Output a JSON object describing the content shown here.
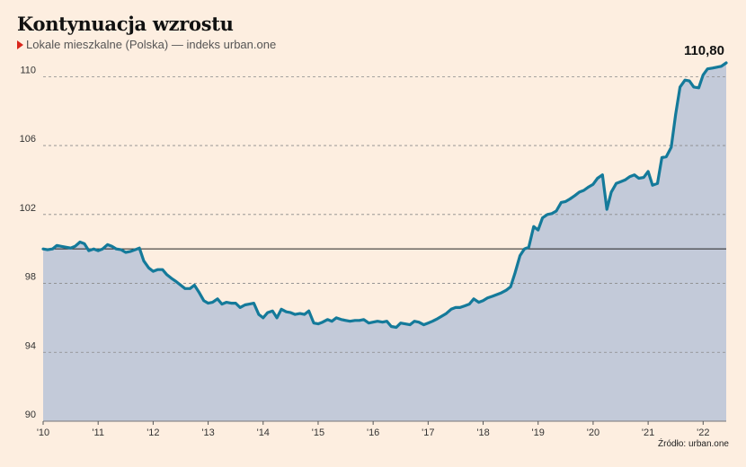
{
  "header": {
    "title": "Kontynuacja wzrostu",
    "subtitle": "Lokale mieszkalne (Polska) — indeks urban.one"
  },
  "footer": {
    "source": "Źródło: urban.one"
  },
  "colors": {
    "line": "#147a9a",
    "area": "#c3cad9",
    "background": "#fdeee0",
    "marker": "#d9261c"
  },
  "chart_data": {
    "type": "area",
    "title": "Kontynuacja wzrostu",
    "subtitle": "Lokale mieszkalne (Polska) — indeks urban.one",
    "xlabel": "",
    "ylabel": "",
    "xlim": [
      2010.0,
      2022.42
    ],
    "ylim": [
      90,
      110.8
    ],
    "yticks": [
      90,
      94,
      98,
      102,
      106,
      110
    ],
    "xticks": [
      {
        "value": 2010,
        "label": "'10"
      },
      {
        "value": 2011,
        "label": "'11"
      },
      {
        "value": 2012,
        "label": "'12"
      },
      {
        "value": 2013,
        "label": "'13"
      },
      {
        "value": 2014,
        "label": "'14"
      },
      {
        "value": 2015,
        "label": "'15"
      },
      {
        "value": 2016,
        "label": "'16"
      },
      {
        "value": 2017,
        "label": "'17"
      },
      {
        "value": 2018,
        "label": "'18"
      },
      {
        "value": 2019,
        "label": "'19"
      },
      {
        "value": 2020,
        "label": "'20"
      },
      {
        "value": 2021,
        "label": "'21"
      },
      {
        "value": 2022,
        "label": "'22"
      }
    ],
    "reference_line": 100,
    "grid": "horizontal dashed",
    "last_value_label": "110,80",
    "points": [
      [
        2010.0,
        100.0
      ],
      [
        2010.08,
        99.95
      ],
      [
        2010.17,
        100.0
      ],
      [
        2010.25,
        100.2
      ],
      [
        2010.33,
        100.15
      ],
      [
        2010.42,
        100.1
      ],
      [
        2010.5,
        100.05
      ],
      [
        2010.58,
        100.15
      ],
      [
        2010.67,
        100.4
      ],
      [
        2010.75,
        100.3
      ],
      [
        2010.83,
        99.9
      ],
      [
        2010.92,
        100.0
      ],
      [
        2011.0,
        99.9
      ],
      [
        2011.08,
        100.0
      ],
      [
        2011.17,
        100.25
      ],
      [
        2011.25,
        100.15
      ],
      [
        2011.33,
        100.0
      ],
      [
        2011.42,
        99.95
      ],
      [
        2011.5,
        99.8
      ],
      [
        2011.58,
        99.85
      ],
      [
        2011.67,
        99.95
      ],
      [
        2011.75,
        100.05
      ],
      [
        2011.83,
        99.3
      ],
      [
        2011.92,
        98.9
      ],
      [
        2012.0,
        98.7
      ],
      [
        2012.08,
        98.8
      ],
      [
        2012.17,
        98.8
      ],
      [
        2012.25,
        98.5
      ],
      [
        2012.33,
        98.3
      ],
      [
        2012.42,
        98.1
      ],
      [
        2012.5,
        97.9
      ],
      [
        2012.58,
        97.7
      ],
      [
        2012.67,
        97.7
      ],
      [
        2012.75,
        97.9
      ],
      [
        2012.83,
        97.5
      ],
      [
        2012.92,
        97.0
      ],
      [
        2013.0,
        96.85
      ],
      [
        2013.08,
        96.9
      ],
      [
        2013.17,
        97.1
      ],
      [
        2013.25,
        96.8
      ],
      [
        2013.33,
        96.9
      ],
      [
        2013.42,
        96.85
      ],
      [
        2013.5,
        96.85
      ],
      [
        2013.58,
        96.6
      ],
      [
        2013.67,
        96.75
      ],
      [
        2013.75,
        96.8
      ],
      [
        2013.83,
        96.85
      ],
      [
        2013.92,
        96.2
      ],
      [
        2014.0,
        96.0
      ],
      [
        2014.08,
        96.3
      ],
      [
        2014.17,
        96.4
      ],
      [
        2014.25,
        96.0
      ],
      [
        2014.33,
        96.5
      ],
      [
        2014.42,
        96.35
      ],
      [
        2014.5,
        96.3
      ],
      [
        2014.58,
        96.2
      ],
      [
        2014.67,
        96.25
      ],
      [
        2014.75,
        96.2
      ],
      [
        2014.83,
        96.4
      ],
      [
        2014.92,
        95.7
      ],
      [
        2015.0,
        95.65
      ],
      [
        2015.08,
        95.75
      ],
      [
        2015.17,
        95.9
      ],
      [
        2015.25,
        95.8
      ],
      [
        2015.33,
        96.0
      ],
      [
        2015.42,
        95.9
      ],
      [
        2015.5,
        95.85
      ],
      [
        2015.58,
        95.8
      ],
      [
        2015.67,
        95.85
      ],
      [
        2015.75,
        95.85
      ],
      [
        2015.83,
        95.9
      ],
      [
        2015.92,
        95.7
      ],
      [
        2016.0,
        95.75
      ],
      [
        2016.08,
        95.8
      ],
      [
        2016.17,
        95.75
      ],
      [
        2016.25,
        95.8
      ],
      [
        2016.33,
        95.5
      ],
      [
        2016.42,
        95.45
      ],
      [
        2016.5,
        95.7
      ],
      [
        2016.58,
        95.65
      ],
      [
        2016.67,
        95.6
      ],
      [
        2016.75,
        95.8
      ],
      [
        2016.83,
        95.75
      ],
      [
        2016.92,
        95.6
      ],
      [
        2017.0,
        95.7
      ],
      [
        2017.08,
        95.8
      ],
      [
        2017.17,
        95.95
      ],
      [
        2017.25,
        96.1
      ],
      [
        2017.33,
        96.25
      ],
      [
        2017.42,
        96.5
      ],
      [
        2017.5,
        96.6
      ],
      [
        2017.58,
        96.6
      ],
      [
        2017.67,
        96.7
      ],
      [
        2017.75,
        96.8
      ],
      [
        2017.83,
        97.1
      ],
      [
        2017.92,
        96.9
      ],
      [
        2018.0,
        97.0
      ],
      [
        2018.08,
        97.15
      ],
      [
        2018.17,
        97.25
      ],
      [
        2018.25,
        97.35
      ],
      [
        2018.33,
        97.45
      ],
      [
        2018.42,
        97.6
      ],
      [
        2018.5,
        97.8
      ],
      [
        2018.58,
        98.6
      ],
      [
        2018.67,
        99.6
      ],
      [
        2018.75,
        100.0
      ],
      [
        2018.83,
        100.1
      ],
      [
        2018.92,
        101.3
      ],
      [
        2019.0,
        101.1
      ],
      [
        2019.08,
        101.8
      ],
      [
        2019.17,
        102.0
      ],
      [
        2019.25,
        102.05
      ],
      [
        2019.33,
        102.2
      ],
      [
        2019.42,
        102.7
      ],
      [
        2019.5,
        102.75
      ],
      [
        2019.58,
        102.9
      ],
      [
        2019.67,
        103.1
      ],
      [
        2019.75,
        103.3
      ],
      [
        2019.83,
        103.4
      ],
      [
        2019.92,
        103.6
      ],
      [
        2020.0,
        103.75
      ],
      [
        2020.08,
        104.1
      ],
      [
        2020.17,
        104.3
      ],
      [
        2020.25,
        102.3
      ],
      [
        2020.33,
        103.3
      ],
      [
        2020.42,
        103.8
      ],
      [
        2020.5,
        103.9
      ],
      [
        2020.58,
        104.0
      ],
      [
        2020.67,
        104.2
      ],
      [
        2020.75,
        104.3
      ],
      [
        2020.83,
        104.1
      ],
      [
        2020.92,
        104.15
      ],
      [
        2021.0,
        104.5
      ],
      [
        2021.08,
        103.7
      ],
      [
        2021.17,
        103.8
      ],
      [
        2021.25,
        105.3
      ],
      [
        2021.33,
        105.35
      ],
      [
        2021.42,
        105.9
      ],
      [
        2021.5,
        107.8
      ],
      [
        2021.58,
        109.4
      ],
      [
        2021.67,
        109.8
      ],
      [
        2021.75,
        109.75
      ],
      [
        2021.83,
        109.4
      ],
      [
        2021.92,
        109.35
      ],
      [
        2022.0,
        110.1
      ],
      [
        2022.08,
        110.45
      ],
      [
        2022.17,
        110.5
      ],
      [
        2022.25,
        110.55
      ],
      [
        2022.33,
        110.6
      ],
      [
        2022.42,
        110.8
      ]
    ]
  }
}
